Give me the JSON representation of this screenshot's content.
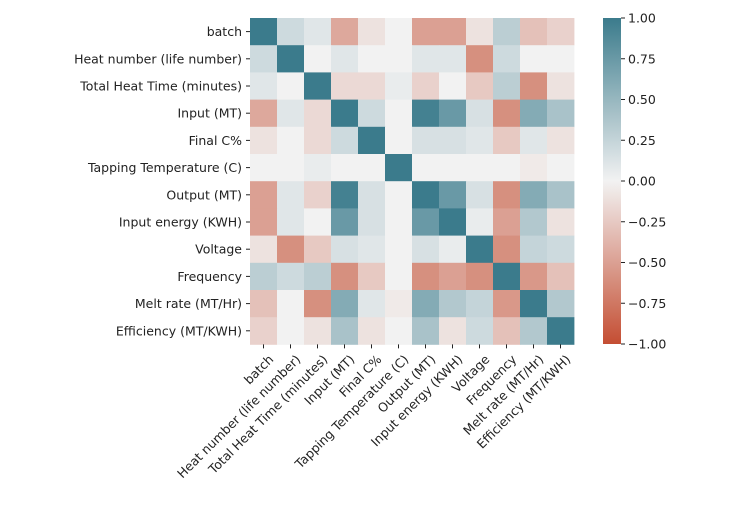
{
  "chart_data": {
    "type": "heatmap",
    "title": "",
    "xlabel": "",
    "ylabel": "",
    "labels": [
      "batch",
      "Heat number (life number)",
      "Total Heat Time (minutes)",
      "Input (MT)",
      "Final C%",
      "Tapping Temperature (C)",
      "Output (MT)",
      "Input energy (KWH)",
      "Voltage",
      "Frequency",
      "Melt rate (MT/Hr)",
      "Efficiency (MT/KWH)"
    ],
    "matrix": [
      [
        1.0,
        0.2,
        0.1,
        -0.45,
        -0.1,
        0.0,
        -0.5,
        -0.5,
        -0.1,
        0.3,
        -0.3,
        -0.2
      ],
      [
        0.2,
        1.0,
        0.0,
        0.1,
        0.0,
        0.0,
        0.1,
        0.1,
        -0.6,
        0.2,
        0.0,
        0.0
      ],
      [
        0.1,
        0.0,
        1.0,
        -0.15,
        -0.15,
        0.05,
        -0.2,
        0.0,
        -0.25,
        0.3,
        -0.6,
        -0.1
      ],
      [
        -0.45,
        0.1,
        -0.15,
        1.0,
        0.2,
        0.0,
        0.95,
        0.75,
        0.15,
        -0.6,
        0.6,
        0.4
      ],
      [
        -0.1,
        0.0,
        -0.15,
        0.2,
        1.0,
        0.0,
        0.15,
        0.15,
        0.1,
        -0.25,
        0.1,
        -0.1
      ],
      [
        0.0,
        0.0,
        0.05,
        0.0,
        0.0,
        1.0,
        0.0,
        0.0,
        0.0,
        0.0,
        -0.05,
        0.0
      ],
      [
        -0.5,
        0.1,
        -0.2,
        0.95,
        0.15,
        0.0,
        1.0,
        0.75,
        0.15,
        -0.6,
        0.6,
        0.4
      ],
      [
        -0.5,
        0.1,
        0.0,
        0.75,
        0.15,
        0.0,
        0.75,
        1.0,
        0.05,
        -0.5,
        0.35,
        -0.1
      ],
      [
        -0.1,
        -0.6,
        -0.25,
        0.15,
        0.1,
        0.0,
        0.15,
        0.05,
        1.0,
        -0.6,
        0.25,
        0.2
      ],
      [
        0.3,
        0.2,
        0.3,
        -0.6,
        -0.25,
        0.0,
        -0.6,
        -0.5,
        -0.6,
        1.0,
        -0.55,
        -0.3
      ],
      [
        -0.3,
        0.0,
        -0.6,
        0.6,
        0.1,
        -0.05,
        0.6,
        0.35,
        0.25,
        -0.55,
        1.0,
        0.35
      ],
      [
        -0.2,
        0.0,
        -0.1,
        0.4,
        -0.1,
        0.0,
        0.4,
        -0.1,
        0.2,
        -0.3,
        0.35,
        1.0
      ]
    ],
    "vmin": -1.0,
    "vmax": 1.0,
    "colormap": {
      "negative": "#c44e33",
      "center": "#f2f2f2",
      "positive": "#3b7b8c"
    },
    "colorbar": {
      "ticks": [
        1.0,
        0.75,
        0.5,
        0.25,
        0.0,
        -0.25,
        -0.5,
        -0.75,
        -1.0
      ],
      "tick_labels": [
        "1.00",
        "0.75",
        "0.50",
        "0.25",
        "0.00",
        "−0.25",
        "−0.50",
        "−0.75",
        "−1.00"
      ],
      "placement": "right"
    },
    "grid": false
  }
}
